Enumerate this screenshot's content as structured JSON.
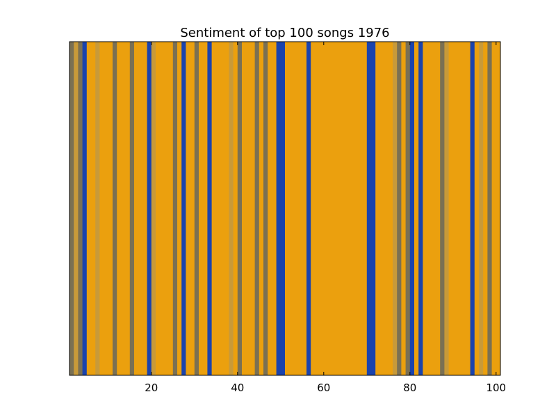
{
  "chart_data": {
    "type": "heatmap",
    "title": "Sentiment of top 100 songs 1976",
    "xlabel": "",
    "ylabel": "",
    "xlim": [
      1,
      101
    ],
    "xticks": [
      20,
      40,
      60,
      80,
      100
    ],
    "grid": false,
    "legend": "none",
    "colors": {
      "positive": "#eba00e",
      "neutral": "#7a7053",
      "negative": "#1a43ad",
      "light_neutral": "#c89a39"
    },
    "songs": [
      1,
      2,
      3,
      4,
      5,
      6,
      7,
      8,
      9,
      10,
      11,
      12,
      13,
      14,
      15,
      16,
      17,
      18,
      19,
      20,
      21,
      22,
      23,
      24,
      25,
      26,
      27,
      28,
      29,
      30,
      31,
      32,
      33,
      34,
      35,
      36,
      37,
      38,
      39,
      40,
      41,
      42,
      43,
      44,
      45,
      46,
      47,
      48,
      49,
      50,
      51,
      52,
      53,
      54,
      55,
      56,
      57,
      58,
      59,
      60,
      61,
      62,
      63,
      64,
      65,
      66,
      67,
      68,
      69,
      70,
      71,
      72,
      73,
      74,
      75,
      76,
      77,
      78,
      79,
      80,
      81,
      82,
      83,
      84,
      85,
      86,
      87,
      88,
      89,
      90,
      91,
      92,
      93,
      94,
      95,
      96,
      97,
      98,
      99,
      100
    ],
    "sentiment": [
      "neutral",
      "light_neutral",
      "neutral",
      "negative",
      "positive",
      "positive",
      "light_neutral",
      "positive",
      "positive",
      "positive",
      "neutral",
      "positive",
      "positive",
      "positive",
      "neutral",
      "positive",
      "positive",
      "positive",
      "negative",
      "light_neutral",
      "positive",
      "positive",
      "positive",
      "positive",
      "neutral",
      "positive",
      "negative",
      "positive",
      "positive",
      "neutral",
      "positive",
      "positive",
      "negative",
      "positive",
      "positive",
      "positive",
      "positive",
      "light_neutral",
      "positive",
      "neutral",
      "positive",
      "positive",
      "positive",
      "neutral",
      "positive",
      "neutral",
      "positive",
      "positive",
      "negative",
      "negative",
      "positive",
      "positive",
      "positive",
      "positive",
      "positive",
      "negative",
      "positive",
      "positive",
      "positive",
      "positive",
      "positive",
      "positive",
      "positive",
      "positive",
      "positive",
      "positive",
      "positive",
      "positive",
      "positive",
      "negative",
      "negative",
      "positive",
      "positive",
      "positive",
      "positive",
      "light_neutral",
      "neutral",
      "positive",
      "neutral",
      "negative",
      "positive",
      "negative",
      "positive",
      "positive",
      "positive",
      "positive",
      "neutral",
      "light_neutral",
      "positive",
      "positive",
      "positive",
      "positive",
      "positive",
      "negative",
      "positive",
      "light_neutral",
      "positive",
      "neutral",
      "positive",
      "positive"
    ]
  }
}
